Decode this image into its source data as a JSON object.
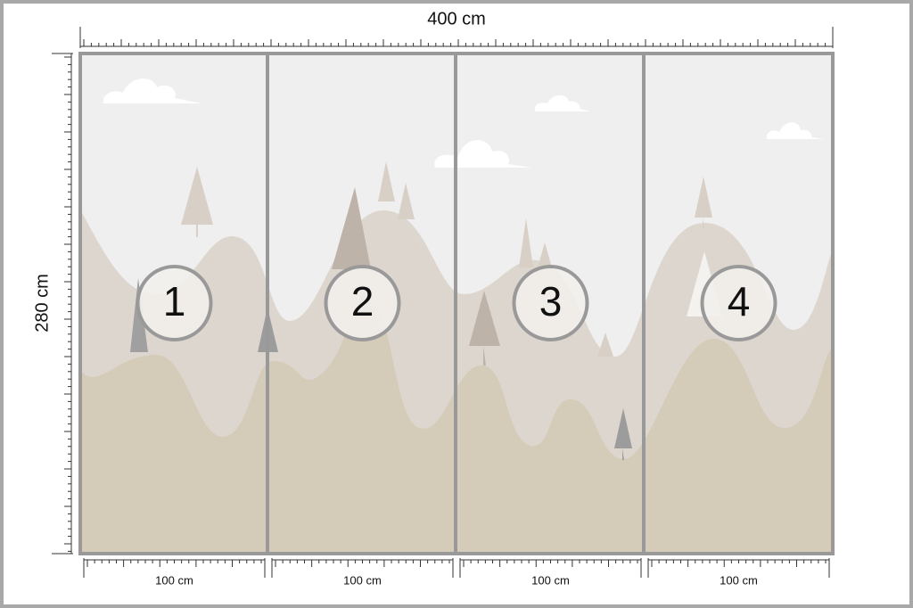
{
  "dimensions": {
    "width_label": "400 cm",
    "height_label": "280 cm"
  },
  "panels": [
    {
      "number": "1",
      "width_label": "100 cm"
    },
    {
      "number": "2",
      "width_label": "100 cm"
    },
    {
      "number": "3",
      "width_label": "100 cm"
    },
    {
      "number": "4",
      "width_label": "100 cm"
    }
  ]
}
